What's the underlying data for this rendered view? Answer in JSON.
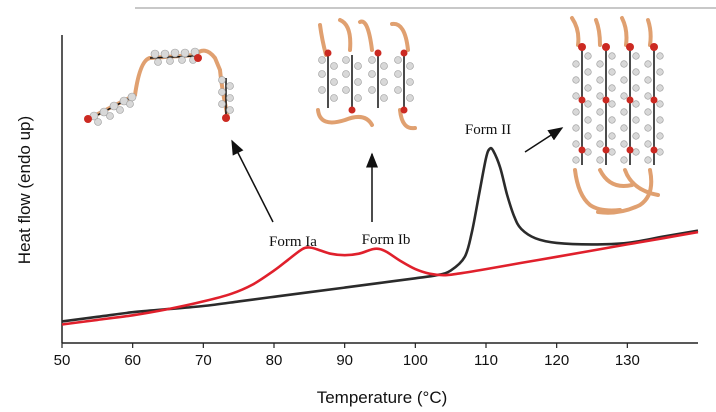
{
  "chart_data": {
    "type": "line",
    "xlabel": "Temperature (°C)",
    "ylabel": "Heat flow (endo up)",
    "xlim": [
      50,
      140
    ],
    "x_ticks": [
      "50",
      "60",
      "70",
      "80",
      "90",
      "100",
      "110",
      "120",
      "130"
    ],
    "grid": false,
    "series": [
      {
        "color": "#e0202c",
        "points": [
          [
            50,
            0.06
          ],
          [
            55,
            0.075
          ],
          [
            60,
            0.09
          ],
          [
            65,
            0.11
          ],
          [
            70,
            0.135
          ],
          [
            74,
            0.16
          ],
          [
            77,
            0.19
          ],
          [
            80,
            0.235
          ],
          [
            82,
            0.27
          ],
          [
            84,
            0.305
          ],
          [
            85,
            0.31
          ],
          [
            86,
            0.305
          ],
          [
            88,
            0.29
          ],
          [
            90,
            0.285
          ],
          [
            92,
            0.29
          ],
          [
            94,
            0.305
          ],
          [
            95,
            0.305
          ],
          [
            96,
            0.295
          ],
          [
            98,
            0.265
          ],
          [
            100,
            0.24
          ],
          [
            102,
            0.225
          ],
          [
            104,
            0.22
          ],
          [
            106,
            0.225
          ],
          [
            110,
            0.24
          ],
          [
            115,
            0.26
          ],
          [
            120,
            0.28
          ],
          [
            125,
            0.3
          ],
          [
            130,
            0.32
          ],
          [
            135,
            0.34
          ],
          [
            140,
            0.36
          ]
        ]
      },
      {
        "color": "#2b2b2b",
        "points": [
          [
            50,
            0.07
          ],
          [
            55,
            0.085
          ],
          [
            60,
            0.1
          ],
          [
            65,
            0.11
          ],
          [
            70,
            0.12
          ],
          [
            75,
            0.135
          ],
          [
            80,
            0.15
          ],
          [
            85,
            0.165
          ],
          [
            90,
            0.18
          ],
          [
            95,
            0.195
          ],
          [
            100,
            0.21
          ],
          [
            103,
            0.22
          ],
          [
            105,
            0.235
          ],
          [
            107,
            0.28
          ],
          [
            108,
            0.36
          ],
          [
            109,
            0.48
          ],
          [
            110,
            0.6
          ],
          [
            110.5,
            0.63
          ],
          [
            111,
            0.625
          ],
          [
            112,
            0.57
          ],
          [
            113,
            0.48
          ],
          [
            114,
            0.41
          ],
          [
            115,
            0.37
          ],
          [
            117,
            0.34
          ],
          [
            120,
            0.325
          ],
          [
            125,
            0.32
          ],
          [
            130,
            0.325
          ],
          [
            135,
            0.345
          ],
          [
            140,
            0.365
          ]
        ]
      }
    ],
    "annotations": [
      {
        "label": "Form Ia",
        "x": 85,
        "y": 0.31
      },
      {
        "label": "Form Ib",
        "x": 94,
        "y": 0.305
      },
      {
        "label": "Form II",
        "x": 110.5,
        "y": 0.63
      }
    ]
  },
  "colors": {
    "axis": "#222222",
    "chain_body": "#e0a070",
    "chain_bead": "#d8d8d8",
    "head_group": "#cc2a22",
    "backbone": "#111111",
    "top_rule": "#c8c8c8"
  }
}
